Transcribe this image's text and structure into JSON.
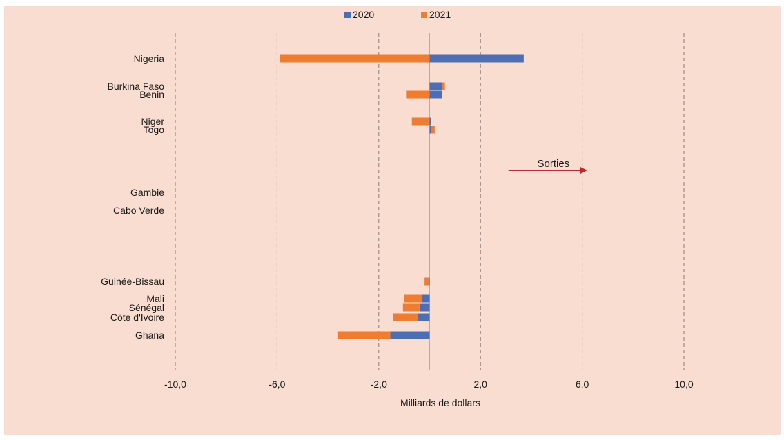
{
  "chart_data": {
    "type": "bar",
    "orientation": "horizontal",
    "stacked": true,
    "categories": [
      "Nigeria",
      "Burkina Faso",
      "Benin",
      "Niger",
      "Togo",
      "Gambie",
      "Cabo Verde",
      "Guinée-Bissau",
      "Mali",
      "Sénégal",
      "Côte d'Ivoire",
      "Ghana"
    ],
    "series": [
      {
        "name": "2020",
        "color": "#4e6eb3",
        "values": [
          3.7,
          0.5,
          0.5,
          0.05,
          0.05,
          0,
          0,
          -0.05,
          -0.3,
          -0.4,
          -0.45,
          -1.55
        ]
      },
      {
        "name": "2021",
        "color": "#ef7d31",
        "values": [
          -5.9,
          0.1,
          -0.9,
          -0.7,
          0.15,
          0,
          0,
          -0.15,
          -0.7,
          -0.65,
          -1.0,
          -2.05
        ]
      }
    ],
    "xlabel": "Milliards de dollars",
    "xlim": [
      -10,
      10
    ],
    "xticks": [
      -10,
      -6,
      -2,
      2,
      6,
      10
    ],
    "xtick_labels": [
      "-10,0",
      "-6,0",
      "-2,0",
      "2,0",
      "6,0",
      "10,0"
    ],
    "grid": "vertical dashed",
    "legend_position": "top",
    "annotation": {
      "text": "Sorties",
      "arrow_from": 3.1,
      "arrow_to": 6.2,
      "arrow_color": "#c0282d"
    },
    "background": "#f9ddd0"
  }
}
